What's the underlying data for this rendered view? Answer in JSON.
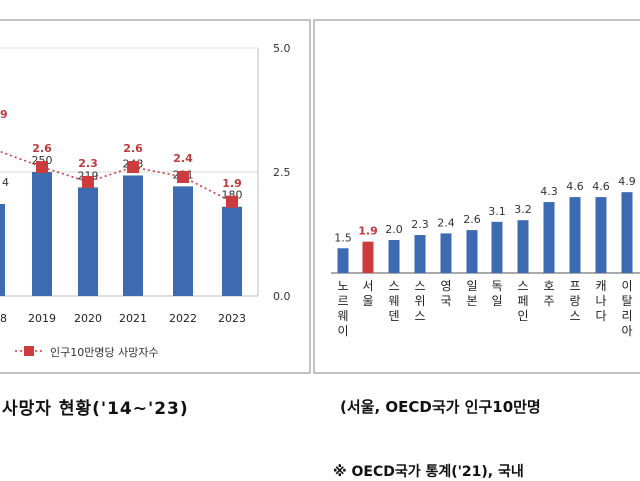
{
  "colors": {
    "bar": "#3c6bb2",
    "highlight_bar": "#cc3b3d",
    "rate_line": "#cc3b3d",
    "rate_label": "#c0393b",
    "panel_border": "#9a9a9a",
    "grid": "#d9d9d9",
    "axis_text": "#333333"
  },
  "chart_data": [
    {
      "type": "bar",
      "x": [
        "8",
        "2019",
        "2020",
        "2021",
        "2022",
        "2023"
      ],
      "series": [
        {
          "values": [
            null,
            250,
            219,
            243,
            221,
            180
          ]
        },
        {
          "name": "인구10만명당 사망자수",
          "values": [
            null,
            2.6,
            2.3,
            2.6,
            2.4,
            1.9
          ]
        }
      ],
      "secondary_axis_ticks": [
        "0.0",
        "2.5",
        "5.0"
      ],
      "secondary_ylim": [
        0,
        5
      ],
      "partial_labels": {
        "rate_first": "9",
        "count_first": "4"
      },
      "legend": "bottom",
      "grid": true,
      "caption": "사망자 현황('14~'23)"
    },
    {
      "type": "bar",
      "categories": [
        "노르웨이",
        "서울",
        "스웨덴",
        "스위스",
        "영국",
        "일본",
        "독일",
        "스페인",
        "호주",
        "프랑스",
        "캐나다",
        "이탈리아"
      ],
      "category_labels": [
        "노르웨이",
        "서울",
        "스웨덴",
        "스위스",
        "영국",
        "일본",
        "독일",
        "스페인",
        "호주",
        "프랑스",
        "캐나다",
        "이탈리아"
      ],
      "value_labels": [
        "1.5",
        "1.9",
        "2.0",
        "2.3",
        "2.4",
        "2.6",
        "3.1",
        "3.2",
        "4.3",
        "4.6",
        "4.6",
        "4.9"
      ],
      "values": [
        1.5,
        1.9,
        2.0,
        2.3,
        2.4,
        2.6,
        3.1,
        3.2,
        4.3,
        4.6,
        4.6,
        4.9
      ],
      "highlight": "서울",
      "caption": "(서울, OECD국가 인구10만명",
      "note": "※ OECD국가 통계('21), 국내 "
    }
  ]
}
